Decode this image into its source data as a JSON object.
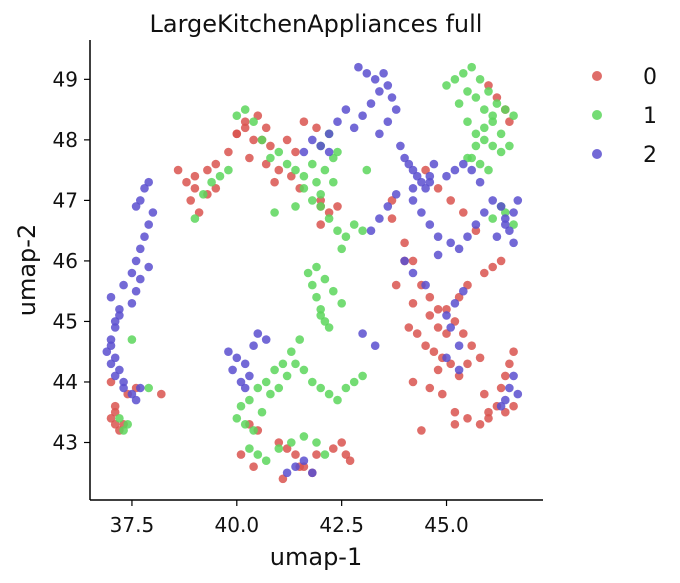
{
  "chart_data": {
    "type": "scatter",
    "title": "LargeKitchenAppliances full",
    "xlabel": "umap-1",
    "ylabel": "umap-2",
    "xlim": [
      36.5,
      47.3
    ],
    "ylim": [
      42.05,
      49.65
    ],
    "xticks": [
      37.5,
      40.0,
      42.5,
      45.0
    ],
    "xtick_labels": [
      "37.5",
      "40.0",
      "42.5",
      "45.0"
    ],
    "yticks": [
      43,
      44,
      45,
      46,
      47,
      48,
      49
    ],
    "ytick_labels": [
      "43",
      "44",
      "45",
      "46",
      "47",
      "48",
      "49"
    ],
    "grid": false,
    "legend_position": "right",
    "series": [
      {
        "name": "0",
        "color": "#d9534f",
        "x": [
          37.0,
          37.1,
          37.2,
          37.3,
          37.1,
          37.4,
          37.6,
          38.2,
          37.0,
          37.1,
          38.9,
          39.0,
          39.1,
          39.3,
          39.5,
          39.8,
          40.0,
          40.2,
          40.4,
          40.6,
          40.8,
          40.2,
          40.5,
          40.0,
          40.3,
          40.7,
          41.0,
          41.5,
          40.9,
          41.3,
          41.6,
          41.9,
          42.0,
          42.2,
          42.4,
          42.0,
          41.0,
          41.2,
          41.4,
          41.6,
          41.8,
          41.1,
          41.5,
          41.9,
          42.3,
          42.5,
          42.6,
          42.7,
          40.3,
          40.5,
          43.7,
          44.0,
          44.2,
          44.4,
          44.6,
          44.8,
          44.1,
          44.3,
          44.5,
          44.7,
          44.9,
          45.1,
          45.3,
          45.5,
          44.2,
          44.6,
          44.9,
          45.2,
          45.5,
          45.8,
          46.0,
          45.9,
          46.2,
          46.3,
          46.4,
          45.8,
          45.6,
          45.4,
          45.2,
          45.0,
          45.3,
          45.5,
          45.9,
          46.1,
          46.3,
          46.5,
          46.6,
          46.0,
          46.4,
          46.6,
          44.5,
          44.8,
          45.1,
          45.4,
          45.7,
          44.0,
          43.8,
          44.2,
          45.0,
          44.8,
          44.4,
          45.2,
          39.0,
          39.3,
          39.5,
          38.6,
          38.8,
          40.7,
          41.2,
          41.4,
          42.0,
          43.7,
          44.6,
          44.8,
          46.0,
          46.2,
          46.4,
          46.5,
          40.1,
          40.4
        ],
        "y": [
          43.4,
          43.3,
          43.2,
          43.3,
          43.5,
          43.8,
          43.9,
          43.8,
          44.0,
          43.6,
          47.0,
          47.2,
          46.8,
          47.1,
          47.6,
          47.8,
          48.1,
          48.2,
          48.0,
          48.0,
          47.9,
          48.3,
          48.4,
          48.1,
          47.7,
          47.6,
          47.5,
          47.2,
          47.3,
          47.4,
          48.3,
          48.2,
          47.0,
          46.8,
          46.9,
          46.6,
          43.0,
          42.9,
          42.8,
          42.6,
          42.5,
          42.4,
          42.6,
          42.8,
          42.9,
          43.0,
          42.8,
          42.7,
          43.3,
          43.2,
          46.7,
          46.3,
          46.0,
          45.6,
          45.4,
          45.2,
          44.9,
          44.8,
          44.6,
          44.5,
          44.4,
          44.3,
          44.1,
          44.3,
          44.0,
          43.9,
          43.8,
          43.5,
          43.4,
          43.3,
          43.5,
          43.8,
          43.6,
          43.9,
          44.1,
          44.4,
          44.6,
          44.8,
          45.0,
          45.2,
          45.4,
          45.6,
          45.8,
          45.9,
          46.0,
          44.3,
          44.5,
          43.4,
          43.5,
          43.6,
          47.5,
          47.2,
          47.0,
          46.8,
          46.5,
          46.0,
          45.6,
          45.3,
          44.8,
          44.2,
          43.2,
          43.3,
          47.4,
          47.5,
          47.2,
          47.5,
          47.3,
          48.2,
          48.0,
          47.8,
          46.9,
          47.0,
          45.1,
          44.9,
          48.9,
          48.7,
          48.5,
          48.3,
          42.8,
          42.6
        ]
      },
      {
        "name": "1",
        "color": "#5cd65c",
        "x": [
          37.5,
          37.4,
          37.2,
          37.3,
          37.9,
          39.0,
          39.2,
          39.4,
          39.6,
          39.8,
          40.0,
          40.2,
          40.4,
          40.6,
          40.8,
          41.0,
          41.2,
          41.4,
          41.6,
          41.8,
          42.0,
          42.2,
          42.4,
          41.9,
          42.1,
          42.3,
          41.6,
          41.8,
          42.0,
          42.2,
          42.4,
          42.6,
          42.8,
          43.0,
          42.5,
          41.9,
          42.1,
          42.3,
          42.5,
          42.0,
          41.7,
          41.8,
          41.9,
          42.0,
          42.1,
          42.2,
          41.5,
          41.3,
          41.1,
          40.9,
          40.7,
          40.5,
          40.3,
          40.1,
          40.0,
          40.2,
          40.4,
          40.6,
          40.8,
          41.0,
          41.2,
          41.4,
          41.6,
          41.8,
          42.0,
          42.2,
          42.4,
          42.6,
          42.8,
          43.0,
          40.3,
          40.5,
          40.7,
          41.0,
          41.3,
          41.6,
          41.9,
          42.1,
          45.0,
          45.2,
          45.4,
          45.6,
          45.8,
          46.0,
          46.2,
          46.4,
          46.6,
          45.5,
          45.7,
          45.9,
          46.1,
          46.3,
          45.6,
          45.8,
          46.0,
          45.5,
          45.7,
          45.9,
          46.1,
          45.3,
          45.5,
          45.7,
          45.9,
          46.1,
          46.3,
          46.5,
          46.3,
          46.1,
          46.4,
          46.6,
          40.9,
          41.4,
          42.0,
          42.3,
          43.1
        ],
        "y": [
          44.7,
          43.3,
          43.4,
          43.2,
          43.9,
          46.7,
          47.1,
          47.3,
          47.4,
          47.5,
          48.4,
          48.5,
          48.3,
          48.0,
          47.7,
          47.8,
          47.6,
          47.5,
          47.4,
          47.6,
          47.9,
          48.1,
          47.8,
          47.3,
          47.5,
          47.7,
          47.2,
          47.0,
          46.9,
          46.7,
          46.5,
          46.4,
          46.6,
          46.5,
          46.2,
          45.9,
          45.7,
          45.5,
          45.3,
          45.1,
          45.8,
          45.6,
          45.4,
          45.2,
          45.0,
          44.9,
          44.7,
          44.5,
          44.3,
          44.2,
          44.0,
          43.9,
          43.7,
          43.6,
          43.4,
          43.3,
          43.2,
          43.5,
          43.8,
          43.9,
          44.1,
          44.3,
          44.2,
          44.0,
          43.9,
          43.8,
          43.7,
          43.9,
          44.0,
          44.1,
          42.9,
          42.8,
          42.7,
          42.9,
          43.0,
          43.1,
          43.0,
          42.8,
          48.9,
          49.0,
          49.1,
          49.2,
          49.0,
          48.8,
          48.6,
          48.5,
          48.4,
          48.3,
          48.1,
          48.0,
          47.9,
          47.8,
          47.7,
          47.6,
          47.5,
          47.7,
          47.9,
          48.2,
          48.4,
          48.6,
          48.8,
          48.7,
          48.5,
          48.3,
          48.1,
          47.9,
          46.9,
          46.7,
          46.8,
          46.6,
          46.8,
          46.9,
          47.1,
          47.3,
          47.5
        ]
      },
      {
        "name": "2",
        "color": "#5b4fcf",
        "x": [
          37.0,
          37.1,
          37.2,
          37.3,
          37.1,
          37.2,
          37.0,
          37.3,
          37.5,
          37.6,
          37.7,
          37.8,
          37.9,
          38.0,
          37.6,
          37.7,
          37.8,
          37.9,
          37.5,
          37.6,
          37.7,
          37.9,
          37.2,
          37.1,
          37.0,
          36.9,
          37.0,
          37.1,
          37.3,
          37.5,
          37.6,
          37.7,
          39.8,
          40.0,
          40.2,
          40.3,
          40.1,
          40.4,
          39.9,
          40.2,
          40.5,
          40.7,
          41.6,
          41.8,
          42.0,
          42.2,
          42.4,
          42.6,
          42.8,
          43.0,
          43.2,
          43.4,
          43.3,
          43.1,
          42.9,
          43.5,
          43.6,
          43.7,
          43.8,
          43.6,
          43.4,
          43.9,
          44.0,
          44.1,
          44.2,
          44.3,
          44.4,
          44.5,
          44.6,
          44.7,
          44.2,
          44.4,
          44.6,
          44.8,
          43.2,
          43.4,
          43.6,
          43.8,
          44.2,
          44.6,
          45.0,
          45.2,
          45.4,
          45.6,
          45.8,
          45.3,
          45.5,
          45.7,
          45.9,
          46.1,
          46.3,
          46.4,
          46.5,
          46.6,
          46.6,
          46.5,
          46.7,
          46.4,
          46.3,
          45.4,
          45.2,
          45.0,
          44.0,
          44.2,
          44.5,
          44.8,
          45.1,
          46.2,
          46.4,
          46.6,
          46.7,
          45.1,
          45.3,
          41.2,
          41.4,
          41.6,
          41.8,
          43.0,
          43.3,
          45.0,
          45.3,
          42.2
        ],
        "y": [
          44.6,
          44.4,
          44.2,
          44.0,
          45.0,
          45.2,
          45.4,
          45.6,
          45.8,
          46.0,
          46.2,
          46.4,
          46.6,
          46.8,
          46.9,
          47.0,
          47.2,
          47.3,
          45.3,
          45.5,
          45.7,
          45.9,
          45.1,
          44.9,
          44.7,
          44.5,
          44.3,
          44.1,
          43.9,
          43.8,
          43.7,
          43.9,
          44.5,
          44.4,
          44.3,
          44.1,
          44.0,
          44.6,
          44.2,
          43.9,
          44.8,
          44.7,
          47.8,
          48.0,
          47.9,
          48.1,
          48.3,
          48.5,
          48.2,
          48.4,
          48.6,
          48.8,
          49.0,
          49.1,
          49.2,
          49.1,
          48.9,
          48.7,
          48.5,
          48.3,
          48.1,
          47.9,
          47.7,
          47.6,
          47.5,
          47.4,
          47.3,
          47.2,
          47.4,
          47.6,
          47.0,
          46.8,
          46.6,
          46.4,
          46.5,
          46.7,
          46.9,
          47.1,
          47.2,
          47.3,
          47.4,
          47.5,
          47.6,
          47.5,
          47.3,
          46.2,
          46.4,
          46.6,
          46.8,
          47.0,
          46.9,
          46.7,
          46.5,
          46.3,
          44.1,
          43.9,
          43.8,
          43.7,
          43.6,
          45.5,
          45.3,
          45.1,
          46.0,
          45.8,
          45.6,
          46.1,
          46.3,
          46.4,
          46.6,
          46.8,
          47.0,
          44.9,
          44.6,
          42.5,
          42.6,
          42.7,
          42.5,
          44.8,
          44.6,
          44.4,
          44.2,
          47.8
        ]
      }
    ]
  }
}
